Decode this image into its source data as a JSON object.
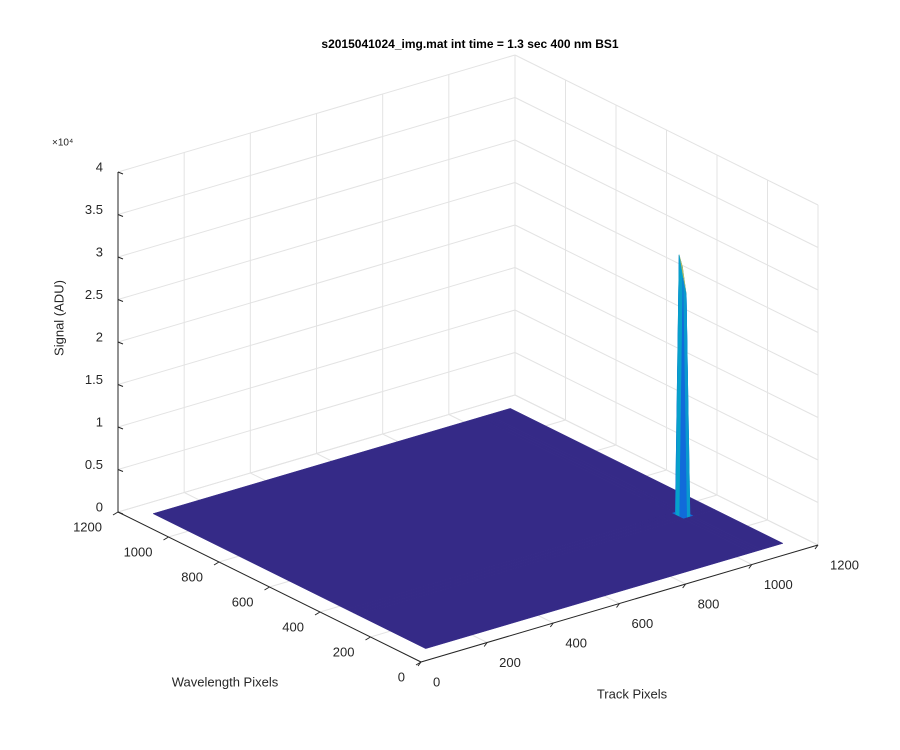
{
  "chart_data": {
    "type": "surface3d",
    "title": "s2015041024_img.mat int time = 1.3 sec  400 nm BS1",
    "xlabel": "Track Pixels",
    "ylabel": "Wavelength Pixels",
    "zlabel": "Signal (ADU)",
    "z_exponent_label": "×10⁴",
    "xlim": [
      0,
      1200
    ],
    "ylim": [
      0,
      1200
    ],
    "zlim": [
      0,
      40000
    ],
    "xticks": [
      0,
      200,
      400,
      600,
      800,
      1000,
      1200
    ],
    "yticks": [
      0,
      200,
      400,
      600,
      800,
      1000,
      1200
    ],
    "zticks": [
      0,
      {
        "value": 5000,
        "label": "0.5"
      },
      {
        "value": 10000,
        "label": "1"
      },
      {
        "value": 15000,
        "label": "1.5"
      },
      {
        "value": 20000,
        "label": "2"
      },
      {
        "value": 25000,
        "label": "2.5"
      },
      {
        "value": 30000,
        "label": "3"
      },
      {
        "value": 35000,
        "label": "3.5"
      },
      {
        "value": 40000,
        "label": "4"
      }
    ],
    "grid": true,
    "colormap": "parula",
    "x": [
      60,
      1045,
      1055,
      1065,
      1075,
      1140
    ],
    "y": [
      60,
      330,
      345,
      360,
      375,
      1140
    ],
    "z": [
      [
        0,
        0,
        0,
        0,
        0,
        0
      ],
      [
        0,
        0,
        0,
        0,
        0,
        0
      ],
      [
        0,
        0,
        28000,
        26000,
        0,
        0
      ],
      [
        0,
        0,
        30500,
        29000,
        0,
        0
      ],
      [
        0,
        0,
        0,
        0,
        0,
        0
      ],
      [
        0,
        0,
        0,
        0,
        0,
        0
      ]
    ]
  }
}
